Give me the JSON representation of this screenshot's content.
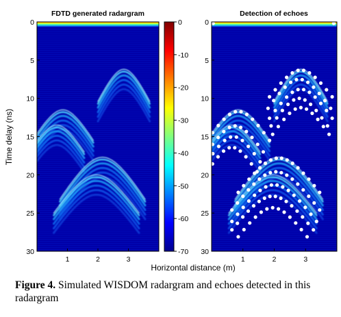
{
  "caption": {
    "label": "Figure 4.",
    "text": " Simulated WISDOM radargram and echoes detected in this radargram"
  },
  "ylabel": "Time delay (ns)",
  "xlabel": "Horizontal distance (m)",
  "colors": {
    "background": "#0000a8",
    "echo_dots": "#ffffff",
    "frame": "#000000"
  },
  "chart_data": [
    {
      "type": "heatmap",
      "title": "FDTD generated radargram",
      "xlabel": "Horizontal distance (m)",
      "ylabel": "Time delay (ns)",
      "xlim": [
        0,
        4
      ],
      "ylim": [
        30,
        0
      ],
      "xticks": [
        1,
        2,
        3
      ],
      "yticks": [
        0,
        5,
        10,
        15,
        20,
        25,
        30
      ],
      "colormap": "jet",
      "colorbar": {
        "ticks": [
          0,
          -10,
          -20,
          -30,
          -40,
          -50,
          -60,
          -70
        ],
        "range": [
          -70,
          0
        ]
      },
      "surface_reflection_ns": 0.2,
      "hyperbolas": [
        {
          "apex_x": 2.85,
          "apex_t": 6.2,
          "half_width_m": 0.85,
          "depth_ns": 4.2
        },
        {
          "apex_x": 0.85,
          "apex_t": 11.5,
          "half_width_m": 1.0,
          "depth_ns": 4.0
        },
        {
          "apex_x": 0.65,
          "apex_t": 13.5,
          "half_width_m": 0.9,
          "depth_ns": 3.5
        },
        {
          "apex_x": 2.15,
          "apex_t": 17.7,
          "half_width_m": 1.4,
          "depth_ns": 5.5
        },
        {
          "apex_x": 1.95,
          "apex_t": 20.0,
          "half_width_m": 1.4,
          "depth_ns": 5.0
        }
      ]
    },
    {
      "type": "scatter",
      "title": "Detection of echoes",
      "xlim": [
        0,
        4
      ],
      "ylim": [
        30,
        0
      ],
      "xticks": [
        1,
        2,
        3
      ],
      "yticks": [
        0,
        5,
        10,
        15,
        20,
        25,
        30
      ],
      "surface_dots_ns": 0.2,
      "surface_dot_x": [
        0.05,
        3.9
      ],
      "dot_hyperbolas": [
        {
          "apex_x": 2.85,
          "apex_t": 6.3,
          "half_width_m": 1.0,
          "depth_ns": 3.5
        },
        {
          "apex_x": 2.8,
          "apex_t": 7.5,
          "half_width_m": 1.0,
          "depth_ns": 3.8
        },
        {
          "apex_x": 2.85,
          "apex_t": 8.8,
          "half_width_m": 1.0,
          "depth_ns": 3.8
        },
        {
          "apex_x": 2.8,
          "apex_t": 10.0,
          "half_width_m": 0.9,
          "depth_ns": 3.6
        },
        {
          "apex_x": 2.85,
          "apex_t": 11.2,
          "half_width_m": 0.9,
          "depth_ns": 3.5
        },
        {
          "apex_x": 0.85,
          "apex_t": 11.7,
          "half_width_m": 1.0,
          "depth_ns": 3.8
        },
        {
          "apex_x": 0.75,
          "apex_t": 13.6,
          "half_width_m": 0.9,
          "depth_ns": 3.4
        },
        {
          "apex_x": 0.7,
          "apex_t": 15.0,
          "half_width_m": 0.85,
          "depth_ns": 3.3
        },
        {
          "apex_x": 0.65,
          "apex_t": 16.4,
          "half_width_m": 0.8,
          "depth_ns": 3.2
        },
        {
          "apex_x": 2.15,
          "apex_t": 17.8,
          "half_width_m": 1.3,
          "depth_ns": 4.5
        },
        {
          "apex_x": 2.05,
          "apex_t": 19.6,
          "half_width_m": 1.4,
          "depth_ns": 5.0
        },
        {
          "apex_x": 2.0,
          "apex_t": 21.3,
          "half_width_m": 1.35,
          "depth_ns": 4.8
        },
        {
          "apex_x": 1.95,
          "apex_t": 22.8,
          "half_width_m": 1.3,
          "depth_ns": 4.4
        },
        {
          "apex_x": 1.95,
          "apex_t": 24.3,
          "half_width_m": 1.1,
          "depth_ns": 3.8
        }
      ]
    }
  ]
}
